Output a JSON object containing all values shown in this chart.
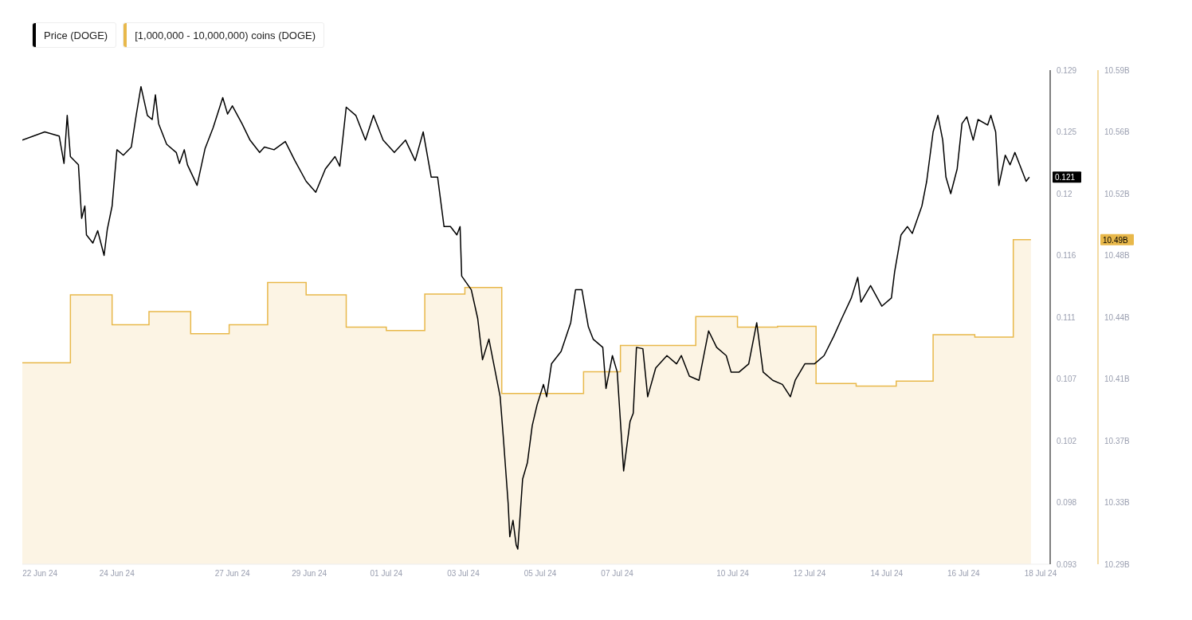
{
  "chart_data": {
    "type": "line",
    "legend": "top left",
    "xlim": [
      "--06-21T13:00",
      "--07-18T06:00"
    ],
    "xticks": [
      {
        "value": "--06-22",
        "label": "22 Jun 24"
      },
      {
        "value": "--06-24",
        "label": "24 Jun 24"
      },
      {
        "value": "--06-27",
        "label": "27 Jun 24"
      },
      {
        "value": "--06-29",
        "label": "29 Jun 24"
      },
      {
        "value": "--07-01",
        "label": "01 Jul 24"
      },
      {
        "value": "--07-03",
        "label": "03 Jul 24"
      },
      {
        "value": "--07-05",
        "label": "05 Jul 24"
      },
      {
        "value": "--07-07",
        "label": "07 Jul 24"
      },
      {
        "value": "--07-10",
        "label": "10 Jul 24"
      },
      {
        "value": "--07-12",
        "label": "12 Jul 24"
      },
      {
        "value": "--07-14",
        "label": "14 Jul 24"
      },
      {
        "value": "--07-16",
        "label": "16 Jul 24"
      },
      {
        "value": "--07-18",
        "label": "18 Jul 24"
      }
    ],
    "ylim": [
      0.093,
      0.129
    ],
    "yticks": [
      0.093,
      {
        "value": 0.0975,
        "label": "0.098"
      },
      0.102,
      {
        "value": 0.1065,
        "label": "0.107"
      },
      0.111,
      {
        "value": 0.1155,
        "label": "0.116"
      },
      0.12,
      {
        "value": 0.1245,
        "label": "0.125"
      },
      0.129
    ],
    "y2lim": [
      10.293,
      10.593
    ],
    "y2ticks": [
      {
        "value": 10.293,
        "label": "10.29B"
      },
      {
        "value": 10.3305,
        "label": "10.33B"
      },
      {
        "value": 10.368,
        "label": "10.37B"
      },
      {
        "value": 10.4055,
        "label": "10.41B"
      },
      {
        "value": 10.443,
        "label": "10.44B"
      },
      {
        "value": 10.4805,
        "label": "10.48B"
      },
      {
        "value": 10.518,
        "label": "10.52B"
      },
      {
        "value": 10.5555,
        "label": "10.56B"
      },
      {
        "value": 10.593,
        "label": "10.59B"
      }
    ],
    "annotations": [
      "0.121",
      "10.49B"
    ],
    "series": [
      {
        "name": "Price (DOGE)",
        "color": "#000000",
        "x": [
          "--06-21T13:00",
          "--06-22T03:00",
          "--06-22T12:00",
          "--06-22T15:00",
          "--06-22T17:00",
          "--06-22T19:00",
          "--06-23T00:00",
          "--06-23T02:00",
          "--06-23T04:00",
          "--06-23T05:00",
          "--06-23T09:00",
          "--06-23T12:00",
          "--06-23T16:00",
          "--06-23T18:00",
          "--06-23T21:00",
          "--06-24T00:00",
          "--06-24T04:00",
          "--06-24T09:00",
          "--06-24T12:00",
          "--06-24T15:00",
          "--06-24T19:00",
          "--06-24T22:00",
          "--06-25T00:00",
          "--06-25T02:00",
          "--06-25T07:00",
          "--06-25T13:00",
          "--06-25T15:00",
          "--06-25T18:00",
          "--06-25T20:00",
          "--06-26T02:00",
          "--06-26T07:00",
          "--06-26T12:00",
          "--06-26T18:00",
          "--06-26T21:00",
          "--06-27T00:00",
          "--06-27T06:00",
          "--06-27T11:00",
          "--06-27T17:00",
          "--06-27T20:00",
          "--06-28T02:00",
          "--06-28T09:00",
          "--06-28T15:00",
          "--06-28T22:00",
          "--06-29T04:00",
          "--06-29T10:00",
          "--06-29T16:00",
          "--06-29T19:00",
          "--06-29T23:00",
          "--06-30T05:00",
          "--06-30T11:00",
          "--06-30T16:00",
          "--06-30T22:00",
          "--07-01T05:00",
          "--07-01T12:00",
          "--07-01T18:00",
          "--07-01T23:00",
          "--07-02T04:00",
          "--07-02T08:00",
          "--07-02T12:00",
          "--07-02T16:00",
          "--07-02T20:00",
          "--07-02T22:00",
          "--07-02T23:00",
          "--07-03T05:00",
          "--07-03T09:00",
          "--07-03T12:00",
          "--07-03T16:00",
          "--07-03T19:00",
          "--07-03T23:00",
          "--07-04T01:00",
          "--07-04T04:00",
          "--07-04T05:00",
          "--07-04T07:00",
          "--07-04T09:00",
          "--07-04T10:00",
          "--07-04T13:00",
          "--07-04T16:00",
          "--07-04T19:00",
          "--07-04T22:00",
          "--07-05T02:00",
          "--07-05T04:00",
          "--07-05T07:00",
          "--07-05T13:00",
          "--07-05T19:00",
          "--07-05T22:00",
          "--07-06T02:00",
          "--07-06T06:00",
          "--07-06T09:00",
          "--07-06T15:00",
          "--07-06T17:00",
          "--07-06T21:00",
          "--07-07T00:00",
          "--07-07T04:00",
          "--07-07T08:00",
          "--07-07T10:00",
          "--07-07T12:00",
          "--07-07T16:00",
          "--07-07T19:00",
          "--07-08T00:00",
          "--07-08T07:00",
          "--07-08T13:00",
          "--07-08T16:00",
          "--07-08T21:00",
          "--07-09T03:00",
          "--07-09T09:00",
          "--07-09T14:00",
          "--07-09T20:00",
          "--07-09T23:00",
          "--07-10T04:00",
          "--07-10T10:00",
          "--07-10T15:00",
          "--07-10T19:00",
          "--07-11T01:00",
          "--07-11T07:00",
          "--07-11T12:00",
          "--07-11T15:00",
          "--07-11T21:00",
          "--07-12T03:00",
          "--07-12T09:00",
          "--07-12T15:00",
          "--07-12T20:00",
          "--07-13T02:00",
          "--07-13T06:00",
          "--07-13T08:00",
          "--07-13T14:00",
          "--07-13T21:00",
          "--07-14T03:00",
          "--07-14T05:00",
          "--07-14T09:00",
          "--07-14T13:00",
          "--07-14T16:00",
          "--07-14T22:00",
          "--07-15T01:00",
          "--07-15T05:00",
          "--07-15T08:00",
          "--07-15T11:00",
          "--07-15T13:00",
          "--07-15T16:00",
          "--07-15T20:00",
          "--07-15T23:00",
          "--07-16T02:00",
          "--07-16T06:00",
          "--07-16T09:00",
          "--07-16T15:00",
          "--07-16T17:00",
          "--07-16T20:00",
          "--07-16T22:00",
          "--07-17T02:00",
          "--07-17T05:00",
          "--07-17T08:00",
          "--07-17T11:00",
          "--07-17T15:00",
          "--07-17T17:00"
        ],
        "values": [
          0.1239,
          0.1245,
          0.1242,
          0.1222,
          0.1257,
          0.1227,
          0.1221,
          0.1182,
          0.1191,
          0.117,
          0.1164,
          0.1173,
          0.1155,
          0.1174,
          0.1191,
          0.1232,
          0.1228,
          0.1234,
          0.1257,
          0.1278,
          0.1257,
          0.1254,
          0.1272,
          0.1251,
          0.1236,
          0.123,
          0.1222,
          0.1232,
          0.1221,
          0.1206,
          0.1233,
          0.1248,
          0.127,
          0.1258,
          0.1264,
          0.1251,
          0.1239,
          0.123,
          0.1234,
          0.1232,
          0.1238,
          0.1224,
          0.1209,
          0.1201,
          0.1218,
          0.1227,
          0.122,
          0.1263,
          0.1257,
          0.1239,
          0.1257,
          0.1239,
          0.123,
          0.1239,
          0.1224,
          0.1245,
          0.1212,
          0.1212,
          0.1176,
          0.1176,
          0.117,
          0.1176,
          0.114,
          0.113,
          0.1109,
          0.1079,
          0.1094,
          0.1076,
          0.1052,
          0.1022,
          0.0974,
          0.095,
          0.0962,
          0.0944,
          0.0941,
          0.0992,
          0.1004,
          0.1031,
          0.1046,
          0.1061,
          0.1052,
          0.1076,
          0.1085,
          0.1106,
          0.113,
          0.113,
          0.1103,
          0.1094,
          0.1088,
          0.1058,
          0.1082,
          0.107,
          0.0998,
          0.1034,
          0.104,
          0.1088,
          0.1087,
          0.1052,
          0.1073,
          0.1082,
          0.1076,
          0.1082,
          0.1067,
          0.1064,
          0.11,
          0.1088,
          0.1082,
          0.107,
          0.107,
          0.1076,
          0.1106,
          0.107,
          0.1064,
          0.1061,
          0.1052,
          0.1064,
          0.1076,
          0.1076,
          0.1082,
          0.1096,
          0.1109,
          0.1124,
          0.1139,
          0.1121,
          0.1133,
          0.1118,
          0.1124,
          0.1143,
          0.117,
          0.1176,
          0.1171,
          0.1191,
          0.1209,
          0.1245,
          0.1257,
          0.1239,
          0.1212,
          0.12,
          0.1218,
          0.1251,
          0.1256,
          0.1239,
          0.1254,
          0.125,
          0.1257,
          0.1245,
          0.1206,
          0.1228,
          0.1221,
          0.123,
          0.1221,
          0.1209,
          0.1212
        ]
      },
      {
        "name": "[1,000,000 - 10,000,000) coins (DOGE)",
        "type": "area",
        "axis": "y2",
        "color": "#e8b84a",
        "x": [
          "--06-21T13:00",
          "--06-22T19:00",
          "--06-22T19:00",
          "--06-23T21:00",
          "--06-23T21:00",
          "--06-24T20:00",
          "--06-24T20:00",
          "--06-25T22:00",
          "--06-25T22:00",
          "--06-26T22:00",
          "--06-26T22:00",
          "--06-27T22:00",
          "--06-27T22:00",
          "--06-28T22:00",
          "--06-28T22:00",
          "--06-29T23:00",
          "--06-29T23:00",
          "--07-01T00:00",
          "--07-01T00:00",
          "--07-02T00:00",
          "--07-02T00:00",
          "--07-03T01:00",
          "--07-03T01:00",
          "--07-04T00:00",
          "--07-04T00:00",
          "--07-06T03:00",
          "--07-06T03:00",
          "--07-07T02:00",
          "--07-07T02:00",
          "--07-09T01:00",
          "--07-09T01:00",
          "--07-10T03:00",
          "--07-10T03:00",
          "--07-11T04:00",
          "--07-11T04:00",
          "--07-12T04:00",
          "--07-12T04:00",
          "--07-13T05:00",
          "--07-13T05:00",
          "--07-14T06:00",
          "--07-14T06:00",
          "--07-15T05:00",
          "--07-15T05:00",
          "--07-16T07:00",
          "--07-16T07:00",
          "--07-17T07:00",
          "--07-17T07:00",
          "--07-17T18:00"
        ],
        "values": [
          10.4153,
          10.4153,
          10.4565,
          10.4565,
          10.4384,
          10.4384,
          10.4464,
          10.4464,
          10.4329,
          10.4329,
          10.4384,
          10.4384,
          10.464,
          10.464,
          10.4565,
          10.4565,
          10.4369,
          10.4369,
          10.4349,
          10.4349,
          10.457,
          10.457,
          10.461,
          10.461,
          10.3967,
          10.3967,
          10.4098,
          10.4098,
          10.4258,
          10.4258,
          10.4434,
          10.4434,
          10.4369,
          10.4369,
          10.4374,
          10.4374,
          10.4027,
          10.4027,
          10.4012,
          10.4012,
          10.4042,
          10.4042,
          10.4324,
          10.4324,
          10.4309,
          10.4309,
          10.49,
          10.49
        ]
      }
    ]
  }
}
